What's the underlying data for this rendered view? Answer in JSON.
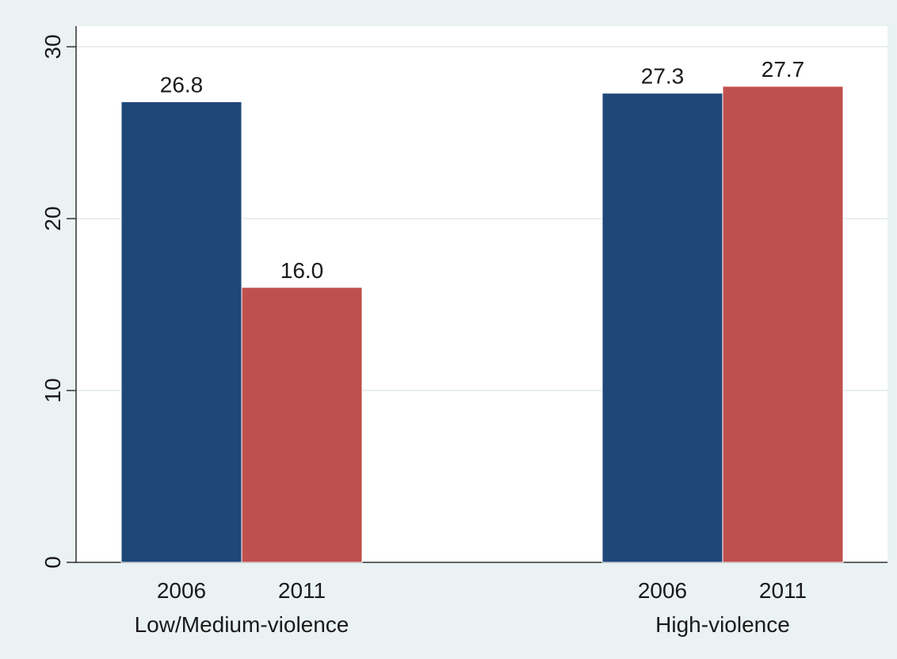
{
  "chart_data": {
    "type": "bar",
    "groups": [
      "Low/Medium-violence",
      "High-violence"
    ],
    "categories": [
      "2006",
      "2011"
    ],
    "series": [
      {
        "values": [
          26.8,
          27.3
        ],
        "labels": [
          "26.8",
          "27.3"
        ],
        "color": "#1f4778"
      },
      {
        "values": [
          16.0,
          27.7
        ],
        "labels": [
          "16.0",
          "27.7"
        ],
        "color": "#bf504d"
      }
    ],
    "ylim": [
      0,
      31.2
    ],
    "yticks": [
      0,
      10,
      20,
      30
    ],
    "ytick_labels": [
      "0",
      "10",
      "20",
      "30"
    ],
    "grid": true,
    "title": "",
    "xlabel": "",
    "ylabel": ""
  },
  "colors": {
    "background": "#eaf2f3",
    "plot_area": "#ffffff",
    "gridline": "#e9eff0",
    "axis": "#333333"
  }
}
